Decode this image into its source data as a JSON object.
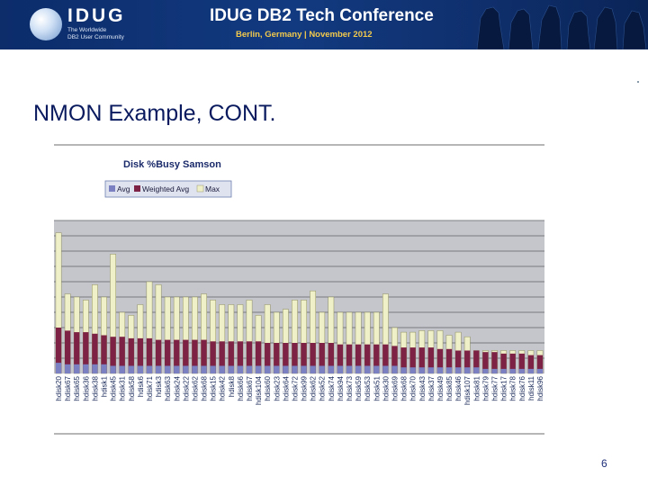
{
  "banner": {
    "logo_name": "IDUG",
    "logo_tag1": "The Worldwide",
    "logo_tag2": "DB2 User Community",
    "conference_title": "IDUG DB2 Tech Conference",
    "conference_subtitle": "Berlin, Germany | November 2012"
  },
  "slide": {
    "title": "NMON Example, CONT.",
    "number": "6"
  },
  "colors": {
    "banner": "#123a80",
    "title": "#0a1a5e",
    "avg": "#7b80c2",
    "weighted_avg": "#7d2244",
    "max": "#f0f0c8"
  },
  "chart_data": {
    "type": "bar",
    "title": "Disk %Busy Samson",
    "legend_position": "top-left",
    "grid": true,
    "ylim": [
      0,
      100
    ],
    "series": [
      {
        "name": "Avg"
      },
      {
        "name": "Weighted Avg"
      },
      {
        "name": "Max"
      }
    ],
    "categories": [
      "hdisk20",
      "hdisk67",
      "hdisk65",
      "hdisk36",
      "hdisk38",
      "hdisk1",
      "hdisk45",
      "hdisk31",
      "hdisk58",
      "hdisk6",
      "hdisk71",
      "hdisk3",
      "hdisk63",
      "hdisk24",
      "hdisk22",
      "hdisk62",
      "hdisk68",
      "hdisk15",
      "hdisk42",
      "hdisk8",
      "hdisk66",
      "hdisk67",
      "hdisk104",
      "hdisk60",
      "hdisk23",
      "hdisk64",
      "hdisk72",
      "hdisk99",
      "hdisk62",
      "hdisk52",
      "hdisk74",
      "hdisk94",
      "hdisk73",
      "hdisk59",
      "hdisk53",
      "hdisk51",
      "hdisk30",
      "hdisk69",
      "hdisk68",
      "hdisk70",
      "hdisk43",
      "hdisk37",
      "hdisk49",
      "hdisk85",
      "hdisk46",
      "hdisk107",
      "hdisk81",
      "hdisk79",
      "hdisk77",
      "hdisk17",
      "hdisk78",
      "hdisk76",
      "hdisk11",
      "hdisk96"
    ],
    "avg_values": [
      7,
      6,
      6,
      6,
      6,
      6,
      5,
      5,
      5,
      5,
      5,
      5,
      5,
      5,
      5,
      5,
      5,
      5,
      5,
      5,
      5,
      5,
      5,
      5,
      5,
      5,
      5,
      5,
      5,
      5,
      5,
      5,
      5,
      5,
      5,
      5,
      5,
      5,
      4,
      4,
      4,
      4,
      4,
      4,
      4,
      4,
      4,
      3,
      3,
      3,
      3,
      3,
      3,
      3
    ],
    "weighted_avg_values": [
      30,
      28,
      27,
      27,
      26,
      25,
      24,
      24,
      23,
      23,
      23,
      22,
      22,
      22,
      22,
      22,
      22,
      21,
      21,
      21,
      21,
      21,
      21,
      20,
      20,
      20,
      20,
      20,
      20,
      20,
      20,
      19,
      19,
      19,
      19,
      19,
      19,
      18,
      17,
      17,
      17,
      17,
      16,
      16,
      15,
      15,
      15,
      14,
      14,
      13,
      13,
      13,
      12,
      12
    ],
    "max_values": [
      92,
      52,
      50,
      48,
      58,
      50,
      78,
      40,
      38,
      45,
      60,
      58,
      50,
      50,
      50,
      50,
      52,
      48,
      45,
      45,
      45,
      48,
      38,
      45,
      40,
      42,
      48,
      48,
      54,
      40,
      50,
      40,
      40,
      40,
      40,
      40,
      52,
      30,
      27,
      27,
      28,
      28,
      28,
      25,
      27,
      24,
      15,
      15,
      15,
      15,
      15,
      15,
      15,
      15
    ]
  }
}
